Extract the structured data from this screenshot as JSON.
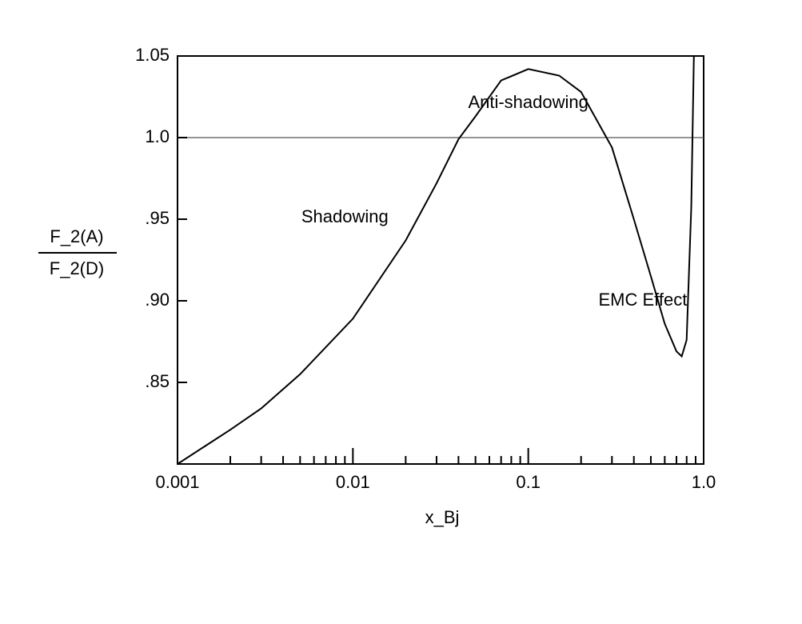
{
  "chart_data": {
    "type": "line",
    "x_label": "x_Bj",
    "y_label": {
      "numerator": "F_2(A)",
      "denominator": "F_2(D)"
    },
    "x": [
      0.001,
      0.002,
      0.003,
      0.005,
      0.01,
      0.02,
      0.03,
      0.04,
      0.05,
      0.07,
      0.1,
      0.15,
      0.2,
      0.3,
      0.4,
      0.5,
      0.6,
      0.7,
      0.75,
      0.8,
      0.85,
      0.88
    ],
    "values": [
      0.8,
      0.821,
      0.834,
      0.855,
      0.889,
      0.937,
      0.972,
      0.999,
      1.013,
      1.035,
      1.042,
      1.038,
      1.028,
      0.994,
      0.95,
      0.915,
      0.886,
      0.869,
      0.866,
      0.876,
      0.957,
      1.05
    ],
    "color": "#000000",
    "xlog": true,
    "xlim": [
      0.001,
      1
    ],
    "ylim": [
      0.8,
      1.05
    ],
    "xticks": [
      {
        "value": 0.001,
        "label": "0.001"
      },
      0.01,
      0.1,
      {
        "value": 1,
        "label": "1.0"
      }
    ],
    "yticks": [
      {
        "value": 0.85,
        "label": ".85"
      },
      {
        "value": 0.9,
        "label": ".90"
      },
      {
        "value": 0.95,
        "label": ".95"
      },
      {
        "value": 1,
        "label": "1.0"
      },
      1.05
    ],
    "reference_line": 1,
    "annotations": [
      {
        "text": "Shadowing",
        "x": 0.009,
        "y": 0.951
      },
      {
        "text": "Anti-shadowing",
        "x": 0.1,
        "y": 1.021
      },
      {
        "text": "EMC Effect",
        "x": 0.45,
        "y": 0.9
      }
    ]
  }
}
